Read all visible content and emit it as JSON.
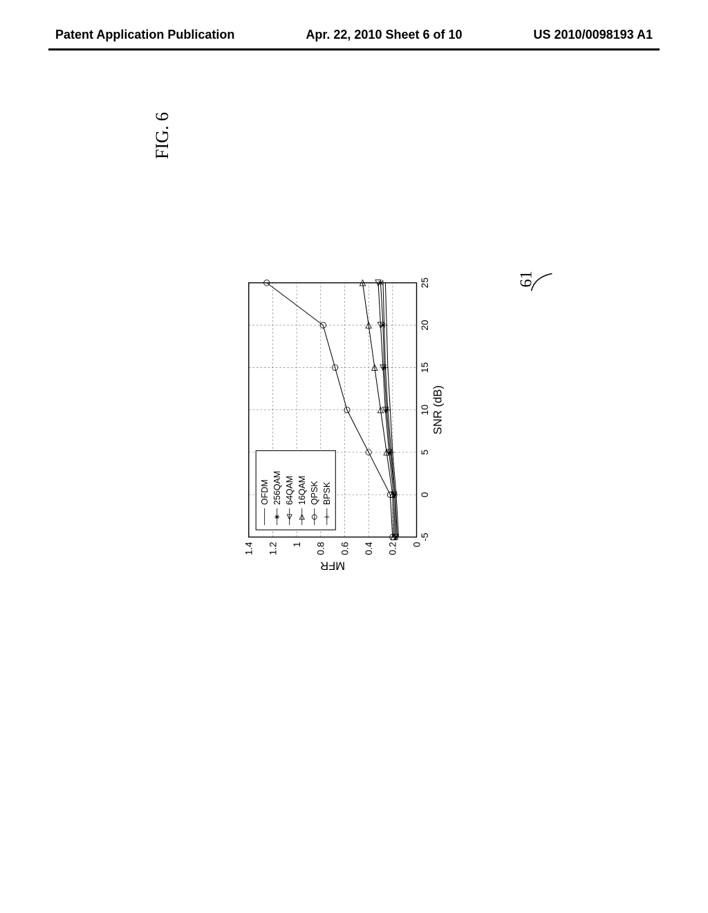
{
  "header": {
    "left": "Patent Application Publication",
    "center": "Apr. 22, 2010  Sheet 6 of 10",
    "right": "US 2010/0098193 A1"
  },
  "figure": {
    "label": "FIG. 6",
    "callout": "61"
  },
  "chart": {
    "type": "line",
    "xlabel": "SNR (dB)",
    "ylabel": "MFR",
    "label_fontsize": 24,
    "tick_fontsize": 20,
    "xlim": [
      -5,
      25
    ],
    "ylim": [
      0,
      1.4
    ],
    "xticks": [
      -5,
      0,
      5,
      10,
      15,
      20,
      25
    ],
    "yticks": [
      0,
      0.2,
      0.4,
      0.6,
      0.8,
      1,
      1.2,
      1.4
    ],
    "background_color": "#ffffff",
    "grid_color": "#808080",
    "grid_style": "dashed",
    "axis_color": "#000000",
    "axis_width": 2,
    "line_color": "#000000",
    "line_width": 1.5,
    "legend": {
      "position": "top-left",
      "border_color": "#000000",
      "items": [
        {
          "label": "OFDM",
          "marker": "none"
        },
        {
          "label": "256QAM",
          "marker": "asterisk"
        },
        {
          "label": "64QAM",
          "marker": "triangle-left"
        },
        {
          "label": "16QAM",
          "marker": "triangle-right"
        },
        {
          "label": "QPSK",
          "marker": "circle"
        },
        {
          "label": "BPSK",
          "marker": "plus"
        }
      ]
    },
    "series": [
      {
        "name": "OFDM",
        "marker": "none",
        "x": [
          -5,
          0,
          5,
          10,
          15,
          20,
          25
        ],
        "y": [
          0.15,
          0.17,
          0.2,
          0.22,
          0.24,
          0.25,
          0.26
        ]
      },
      {
        "name": "256QAM",
        "marker": "asterisk",
        "x": [
          -5,
          0,
          5,
          10,
          15,
          20,
          25
        ],
        "y": [
          0.17,
          0.18,
          0.22,
          0.25,
          0.27,
          0.28,
          0.3
        ]
      },
      {
        "name": "64QAM",
        "marker": "triangle-left",
        "x": [
          -5,
          0,
          5,
          10,
          15,
          20,
          25
        ],
        "y": [
          0.18,
          0.19,
          0.23,
          0.26,
          0.28,
          0.3,
          0.32
        ]
      },
      {
        "name": "16QAM",
        "marker": "triangle-right",
        "x": [
          -5,
          0,
          5,
          10,
          15,
          20,
          25
        ],
        "y": [
          0.19,
          0.2,
          0.25,
          0.3,
          0.35,
          0.4,
          0.45
        ]
      },
      {
        "name": "QPSK",
        "marker": "circle",
        "x": [
          -5,
          0,
          5,
          10,
          15,
          20,
          25
        ],
        "y": [
          0.2,
          0.22,
          0.4,
          0.58,
          0.68,
          0.78,
          1.25
        ]
      },
      {
        "name": "BPSK",
        "marker": "plus",
        "x": [
          -5,
          0,
          5,
          10,
          15,
          20,
          25
        ],
        "y": [
          0.16,
          0.18,
          0.21,
          0.24,
          0.26,
          0.27,
          0.28
        ]
      }
    ]
  }
}
